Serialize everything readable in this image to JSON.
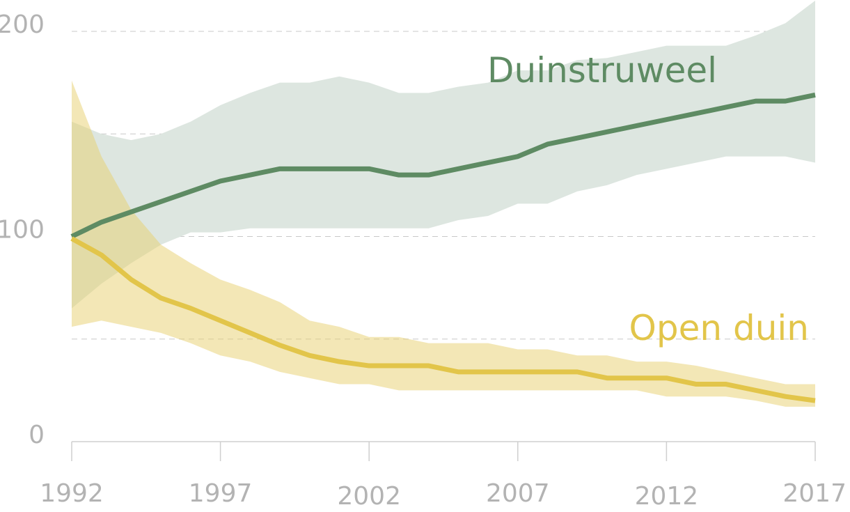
{
  "chart_data": {
    "type": "line",
    "title": "",
    "xlabel": "",
    "ylabel": "",
    "xlim": [
      1992,
      2017
    ],
    "ylim": [
      0,
      200
    ],
    "grid": true,
    "x_ticks": [
      1992,
      1997,
      2002,
      2007,
      2012,
      2017
    ],
    "y_ticks": [
      0,
      100,
      200
    ],
    "gridlines": [
      50,
      100,
      150,
      200
    ],
    "x": [
      1992,
      1993,
      1994,
      1995,
      1996,
      1997,
      1998,
      1999,
      2000,
      2001,
      2002,
      2003,
      2004,
      2005,
      2006,
      2007,
      2008,
      2009,
      2010,
      2011,
      2012,
      2013,
      2014,
      2015,
      2016,
      2017
    ],
    "series": [
      {
        "name": "Duinstruweel",
        "color": "#5e8b63",
        "band_color": "#dde6e0",
        "values": [
          100,
          107,
          112,
          117,
          122,
          127,
          130,
          133,
          133,
          133,
          133,
          130,
          130,
          133,
          136,
          139,
          145,
          148,
          151,
          154,
          157,
          160,
          163,
          166,
          166,
          169
        ],
        "upper": [
          156,
          150,
          147,
          150,
          156,
          164,
          170,
          175,
          175,
          178,
          175,
          170,
          170,
          173,
          175,
          181,
          181,
          186,
          187,
          190,
          193,
          193,
          193,
          198,
          204,
          215
        ],
        "lower": [
          65,
          77,
          87,
          96,
          102,
          102,
          104,
          104,
          104,
          104,
          104,
          104,
          104,
          108,
          110,
          116,
          116,
          122,
          125,
          130,
          133,
          136,
          139,
          139,
          139,
          136
        ]
      },
      {
        "name": "Open duin",
        "color": "#e2c54a",
        "band_color": "rgba(232,207,110,0.5)",
        "values": [
          99,
          91,
          79,
          70,
          65,
          59,
          53,
          47,
          42,
          39,
          37,
          37,
          37,
          34,
          34,
          34,
          34,
          34,
          31,
          31,
          31,
          28,
          28,
          25,
          22,
          20
        ],
        "upper": [
          176,
          139,
          113,
          96,
          87,
          79,
          74,
          68,
          59,
          56,
          51,
          51,
          48,
          48,
          48,
          45,
          45,
          42,
          42,
          39,
          39,
          37,
          34,
          31,
          28,
          28
        ],
        "lower": [
          56,
          59,
          56,
          53,
          48,
          42,
          39,
          34,
          31,
          28,
          28,
          25,
          25,
          25,
          25,
          25,
          25,
          25,
          25,
          25,
          22,
          22,
          22,
          20,
          17,
          17
        ]
      }
    ]
  }
}
